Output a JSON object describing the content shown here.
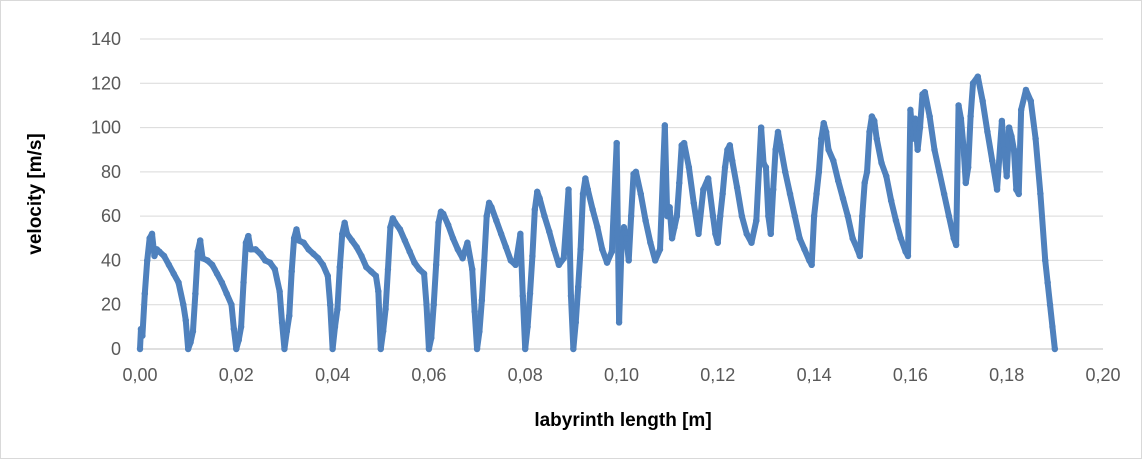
{
  "chart_data": {
    "type": "scatter",
    "title": "",
    "xlabel": "labyrinth length [m]",
    "ylabel": "velocity [m/s]",
    "xlim": [
      0,
      0.2
    ],
    "ylim": [
      0,
      140
    ],
    "x_ticks": [
      0,
      0.02,
      0.04,
      0.06,
      0.08,
      0.1,
      0.12,
      0.14,
      0.16,
      0.18,
      0.2
    ],
    "x_tick_labels": [
      "0,00",
      "0,02",
      "0,04",
      "0,06",
      "0,08",
      "0,10",
      "0,12",
      "0,14",
      "0,16",
      "0,18",
      "0,20"
    ],
    "y_ticks": [
      0,
      20,
      40,
      60,
      80,
      100,
      120,
      140
    ],
    "y_tick_labels": [
      "0",
      "20",
      "40",
      "60",
      "80",
      "100",
      "120",
      "140"
    ],
    "grid": "horizontal",
    "legend": "none",
    "series": [
      {
        "color": "#4f81bd",
        "x": [
          0.0,
          0.0002,
          0.0005,
          0.001,
          0.0015,
          0.002,
          0.0025,
          0.003,
          0.0035,
          0.004,
          0.005,
          0.006,
          0.007,
          0.008,
          0.009,
          0.0095,
          0.01,
          0.0105,
          0.011,
          0.0115,
          0.012,
          0.0125,
          0.013,
          0.014,
          0.015,
          0.016,
          0.017,
          0.018,
          0.019,
          0.0195,
          0.02,
          0.0205,
          0.021,
          0.0215,
          0.022,
          0.0225,
          0.023,
          0.024,
          0.025,
          0.026,
          0.027,
          0.028,
          0.029,
          0.0295,
          0.03,
          0.0305,
          0.031,
          0.0315,
          0.032,
          0.0325,
          0.033,
          0.034,
          0.035,
          0.036,
          0.037,
          0.038,
          0.039,
          0.0395,
          0.04,
          0.0405,
          0.041,
          0.0415,
          0.042,
          0.0425,
          0.043,
          0.044,
          0.045,
          0.046,
          0.047,
          0.048,
          0.049,
          0.0495,
          0.05,
          0.0505,
          0.051,
          0.0515,
          0.052,
          0.0525,
          0.053,
          0.054,
          0.055,
          0.056,
          0.057,
          0.058,
          0.059,
          0.0595,
          0.06,
          0.0605,
          0.061,
          0.0615,
          0.062,
          0.0625,
          0.063,
          0.064,
          0.065,
          0.066,
          0.067,
          0.068,
          0.069,
          0.0695,
          0.07,
          0.0705,
          0.071,
          0.0715,
          0.072,
          0.0725,
          0.073,
          0.074,
          0.075,
          0.076,
          0.077,
          0.078,
          0.079,
          0.0795,
          0.08,
          0.0805,
          0.081,
          0.0815,
          0.082,
          0.0825,
          0.083,
          0.084,
          0.085,
          0.086,
          0.087,
          0.088,
          0.089,
          0.0895,
          0.09,
          0.0905,
          0.091,
          0.0915,
          0.092,
          0.0925,
          0.093,
          0.094,
          0.095,
          0.096,
          0.097,
          0.098,
          0.099,
          0.0995,
          0.1,
          0.1005,
          0.101,
          0.1015,
          0.102,
          0.1025,
          0.103,
          0.104,
          0.105,
          0.106,
          0.107,
          0.108,
          0.109,
          0.1095,
          0.11,
          0.1105,
          0.111,
          0.1115,
          0.112,
          0.1125,
          0.113,
          0.114,
          0.115,
          0.116,
          0.117,
          0.118,
          0.119,
          0.1195,
          0.12,
          0.1205,
          0.121,
          0.1215,
          0.122,
          0.1225,
          0.123,
          0.124,
          0.125,
          0.126,
          0.127,
          0.128,
          0.129,
          0.1295,
          0.13,
          0.1305,
          0.131,
          0.1315,
          0.132,
          0.1325,
          0.133,
          0.134,
          0.135,
          0.136,
          0.137,
          0.138,
          0.139,
          0.1395,
          0.14,
          0.1405,
          0.141,
          0.1415,
          0.142,
          0.1425,
          0.143,
          0.144,
          0.145,
          0.146,
          0.147,
          0.148,
          0.149,
          0.1495,
          0.15,
          0.1505,
          0.151,
          0.1515,
          0.152,
          0.1525,
          0.153,
          0.154,
          0.155,
          0.156,
          0.157,
          0.158,
          0.159,
          0.1595,
          0.16,
          0.1605,
          0.161,
          0.1615,
          0.162,
          0.1625,
          0.163,
          0.164,
          0.165,
          0.166,
          0.167,
          0.168,
          0.169,
          0.1695,
          0.17,
          0.1705,
          0.171,
          0.1715,
          0.172,
          0.1725,
          0.173,
          0.174,
          0.175,
          0.176,
          0.177,
          0.178,
          0.179,
          0.1795,
          0.18,
          0.1805,
          0.181,
          0.1815,
          0.182,
          0.1825,
          0.183,
          0.184,
          0.185,
          0.186,
          0.187,
          0.188,
          0.1885,
          0.189,
          0.1895,
          0.19
        ],
        "y": [
          0,
          9,
          6,
          25,
          40,
          50,
          52,
          42,
          45,
          44,
          42,
          38,
          34,
          30,
          20,
          13,
          0,
          3,
          8,
          25,
          44,
          49,
          41,
          40,
          38,
          34,
          30,
          25,
          20,
          9,
          0,
          4,
          10,
          30,
          48,
          51,
          45,
          45,
          43,
          40,
          39,
          36,
          26,
          12,
          0,
          8,
          15,
          35,
          50,
          54,
          49,
          48,
          45,
          43,
          41,
          38,
          33,
          20,
          0,
          10,
          18,
          37,
          52,
          57,
          52,
          49,
          46,
          42,
          37,
          35,
          33,
          26,
          0,
          8,
          18,
          36,
          55,
          59,
          57,
          54,
          49,
          44,
          39,
          36,
          34,
          20,
          0,
          5,
          20,
          38,
          57,
          62,
          61,
          56,
          50,
          45,
          41,
          48,
          36,
          17,
          0,
          8,
          22,
          40,
          60,
          66,
          64,
          58,
          52,
          46,
          40,
          38,
          52,
          24,
          0,
          10,
          25,
          42,
          63,
          71,
          68,
          60,
          53,
          45,
          38,
          41,
          72,
          24,
          0,
          12,
          28,
          45,
          70,
          77,
          72,
          63,
          55,
          45,
          39,
          44,
          93,
          12,
          46,
          55,
          50,
          40,
          60,
          79,
          80,
          70,
          58,
          48,
          40,
          45,
          101,
          60,
          64,
          50,
          55,
          60,
          75,
          92,
          93,
          82,
          66,
          52,
          72,
          77,
          60,
          52,
          48,
          60,
          70,
          82,
          90,
          92,
          85,
          73,
          60,
          52,
          48,
          58,
          100,
          84,
          82,
          60,
          52,
          72,
          90,
          98,
          92,
          80,
          70,
          60,
          50,
          45,
          40,
          38,
          60,
          70,
          80,
          95,
          102,
          98,
          90,
          85,
          76,
          68,
          60,
          50,
          45,
          42,
          60,
          75,
          80,
          98,
          105,
          103,
          95,
          84,
          78,
          67,
          58,
          50,
          44,
          42,
          108,
          95,
          104,
          90,
          100,
          115,
          116,
          105,
          90,
          80,
          70,
          60,
          50,
          47,
          110,
          104,
          92,
          75,
          82,
          105,
          120,
          123,
          112,
          98,
          85,
          72,
          103,
          90,
          78,
          100,
          96,
          90,
          72,
          70,
          108,
          117,
          112,
          95,
          70,
          40,
          30,
          20,
          10,
          0
        ]
      }
    ]
  }
}
